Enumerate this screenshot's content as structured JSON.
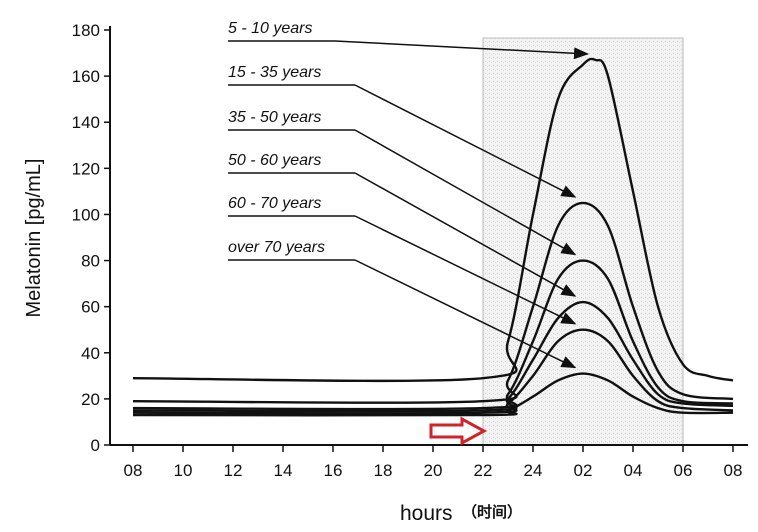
{
  "chart_data": {
    "type": "line",
    "title": "",
    "xlabel": "hours",
    "xlabel_cn": "（时间）",
    "ylabel": "Melatonin [pg/mL]",
    "ylim": [
      0,
      180
    ],
    "yticks": [
      0,
      20,
      40,
      60,
      80,
      100,
      120,
      140,
      160,
      180
    ],
    "xticks": [
      "08",
      "10",
      "12",
      "14",
      "16",
      "18",
      "20",
      "22",
      "24",
      "02",
      "04",
      "06",
      "08"
    ],
    "grid": false,
    "night_shading": {
      "from": "22",
      "to": "06",
      "color": "#d9d9d9"
    },
    "marker_arrow": {
      "at": "22",
      "color": "#d2232a"
    },
    "line_color": "#111111",
    "series": [
      {
        "name": "5 - 10 years",
        "points": [
          [
            "08:00",
            29
          ],
          [
            "22:00",
            29
          ],
          [
            "23:00",
            45
          ],
          [
            "24:00",
            100
          ],
          [
            "01:00",
            150
          ],
          [
            "02:00",
            165
          ],
          [
            "02:30",
            167
          ],
          [
            "03:00",
            160
          ],
          [
            "04:00",
            110
          ],
          [
            "05:00",
            60
          ],
          [
            "06:00",
            35
          ],
          [
            "07:00",
            30
          ],
          [
            "08:00",
            28
          ]
        ]
      },
      {
        "name": "15 - 35 years",
        "points": [
          [
            "08:00",
            19
          ],
          [
            "22:00",
            19
          ],
          [
            "23:00",
            28
          ],
          [
            "24:00",
            60
          ],
          [
            "01:00",
            95
          ],
          [
            "02:00",
            105
          ],
          [
            "03:00",
            95
          ],
          [
            "04:00",
            60
          ],
          [
            "05:00",
            32
          ],
          [
            "06:00",
            22
          ],
          [
            "08:00",
            20
          ]
        ]
      },
      {
        "name": "35 - 50 years",
        "points": [
          [
            "08:00",
            16
          ],
          [
            "22:00",
            16
          ],
          [
            "23:00",
            22
          ],
          [
            "24:00",
            45
          ],
          [
            "01:00",
            72
          ],
          [
            "02:00",
            80
          ],
          [
            "03:00",
            72
          ],
          [
            "04:00",
            45
          ],
          [
            "05:00",
            25
          ],
          [
            "06:00",
            19
          ],
          [
            "08:00",
            18
          ]
        ]
      },
      {
        "name": "50 - 60 years",
        "points": [
          [
            "08:00",
            15
          ],
          [
            "22:00",
            15
          ],
          [
            "23:00",
            20
          ],
          [
            "24:00",
            37
          ],
          [
            "01:00",
            55
          ],
          [
            "02:00",
            62
          ],
          [
            "03:00",
            55
          ],
          [
            "04:00",
            37
          ],
          [
            "05:00",
            22
          ],
          [
            "06:00",
            18
          ],
          [
            "08:00",
            17
          ]
        ]
      },
      {
        "name": "60 - 70 years",
        "points": [
          [
            "08:00",
            14
          ],
          [
            "22:00",
            14
          ],
          [
            "23:00",
            18
          ],
          [
            "24:00",
            30
          ],
          [
            "01:00",
            45
          ],
          [
            "02:00",
            50
          ],
          [
            "03:00",
            45
          ],
          [
            "04:00",
            30
          ],
          [
            "05:00",
            19
          ],
          [
            "06:00",
            16
          ],
          [
            "08:00",
            15
          ]
        ]
      },
      {
        "name": "over 70 years",
        "points": [
          [
            "08:00",
            13
          ],
          [
            "22:00",
            13
          ],
          [
            "23:00",
            15
          ],
          [
            "24:00",
            21
          ],
          [
            "01:00",
            28
          ],
          [
            "02:00",
            31
          ],
          [
            "03:00",
            28
          ],
          [
            "04:00",
            21
          ],
          [
            "05:00",
            16
          ],
          [
            "06:00",
            14
          ],
          [
            "08:00",
            14
          ]
        ]
      }
    ]
  }
}
